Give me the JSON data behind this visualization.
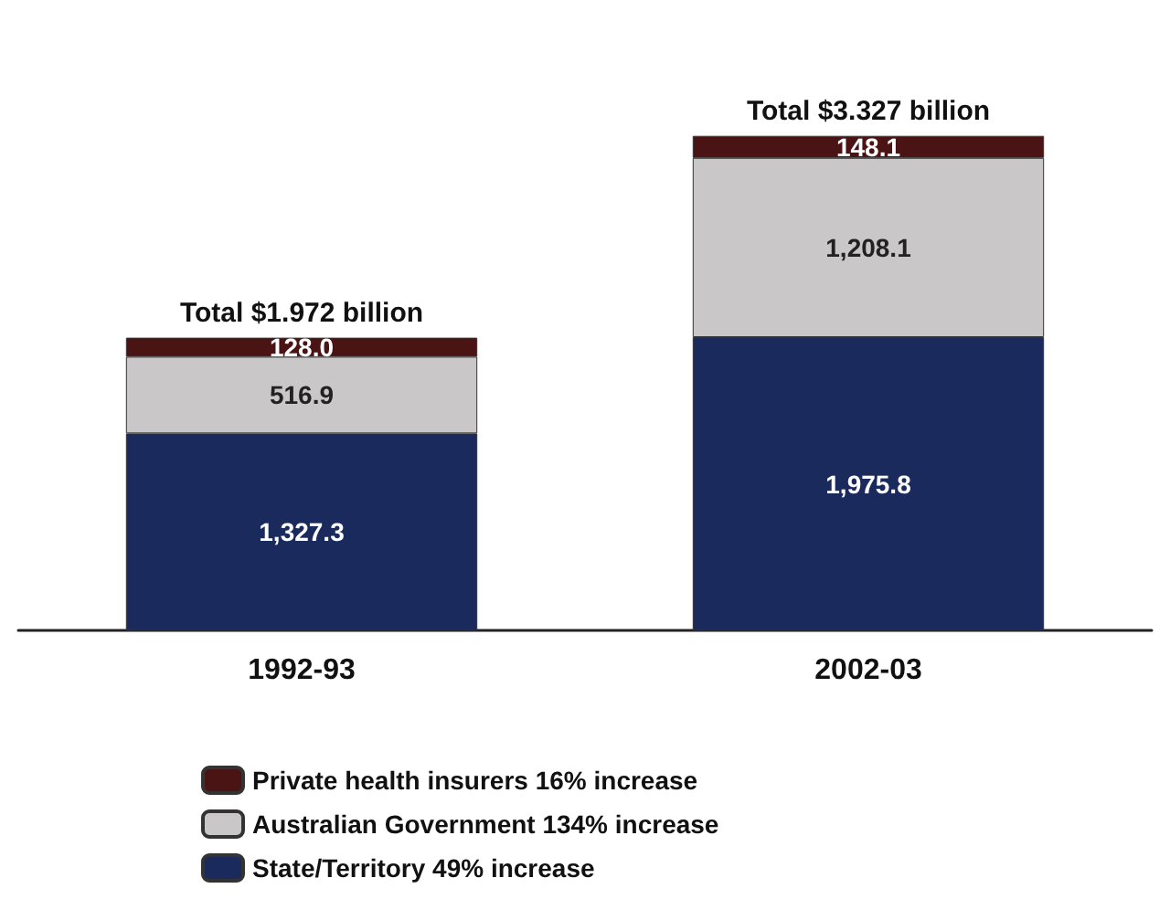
{
  "chart_data": {
    "type": "bar",
    "stacked": true,
    "categories": [
      "1992-93",
      "2002-03"
    ],
    "series": [
      {
        "name": "State/Territory 49% increase",
        "color": "#1b2a5c",
        "values": [
          1327.3,
          1975.8
        ],
        "value_labels": [
          "1,327.3",
          "1,975.8"
        ]
      },
      {
        "name": "Australian Government 134% increase",
        "color": "#c9c7c7",
        "values": [
          516.9,
          1208.1
        ],
        "value_labels": [
          "516.9",
          "1,208.1"
        ]
      },
      {
        "name": "Private health insurers 16% increase",
        "color": "#4a1414",
        "values": [
          128.0,
          148.1
        ],
        "value_labels": [
          "128.0",
          "148.1"
        ]
      }
    ],
    "totals": [
      "Total $1.972 billion",
      "Total $3.327 billion"
    ],
    "legend": "bottom"
  }
}
